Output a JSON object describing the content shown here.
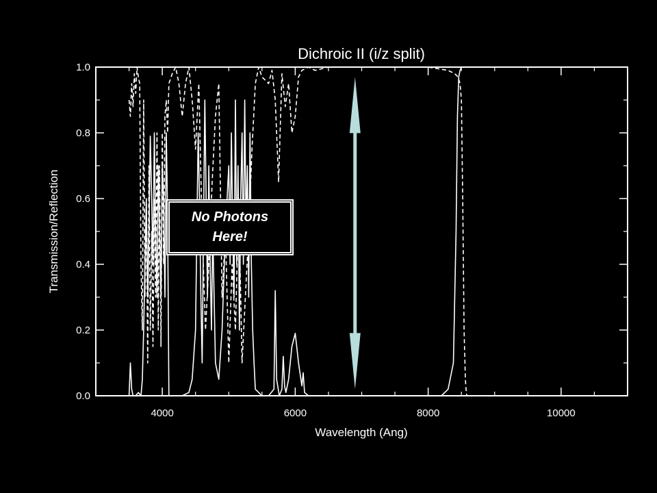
{
  "chart_data": {
    "type": "line",
    "title": "Dichroic II (i/z split)",
    "xlabel": "Wavelength (Ang)",
    "ylabel": "Transmission/Reflection",
    "xlim": [
      3000,
      11000
    ],
    "ylim": [
      0.0,
      1.0
    ],
    "xticks": [
      4000,
      6000,
      8000,
      10000
    ],
    "yticks": [
      "0.0",
      "0.2",
      "0.4",
      "0.6",
      "0.8",
      "1.0"
    ],
    "grid": false,
    "legend": "none",
    "series": [
      {
        "style": "solid",
        "x": [
          3500,
          3520,
          3540,
          3560,
          3580,
          3600,
          3640,
          3680,
          3700,
          3720,
          3740,
          3760,
          3780,
          3800,
          3820,
          3840,
          3860,
          3880,
          3900,
          3920,
          3940,
          3960,
          3980,
          4000,
          4020,
          4040,
          4060,
          4080,
          4100,
          4150,
          4300,
          4400,
          4450,
          4500,
          4520,
          4540,
          4560,
          4580,
          4600,
          4620,
          4640,
          4660,
          4680,
          4700,
          4720,
          4740,
          4760,
          4780,
          4800,
          4850,
          4900,
          4950,
          5000,
          5020,
          5040,
          5060,
          5080,
          5100,
          5120,
          5140,
          5160,
          5180,
          5200,
          5220,
          5240,
          5260,
          5280,
          5300,
          5320,
          5340,
          5360,
          5380,
          5400,
          5450,
          5500,
          5600,
          5680,
          5700,
          5720,
          5760,
          5800,
          5820,
          5840,
          5860,
          5900,
          5950,
          6000,
          6050,
          6100,
          6120,
          6140,
          6200,
          6400,
          7000,
          7800,
          8200,
          8300,
          8380,
          8420,
          8440,
          8460,
          8480,
          8500,
          8550,
          8700,
          9000,
          10000,
          11000
        ],
        "y": [
          0.0,
          0.1,
          0.02,
          0.0,
          0.0,
          0.0,
          0.01,
          0.0,
          0.05,
          0.2,
          0.4,
          0.6,
          0.3,
          0.5,
          0.79,
          0.6,
          0.4,
          0.8,
          0.5,
          0.3,
          0.7,
          0.5,
          0.3,
          0.7,
          0.6,
          0.3,
          0.8,
          0.55,
          0.0,
          0.0,
          0.0,
          0.01,
          0.05,
          0.2,
          0.5,
          0.8,
          0.6,
          0.3,
          0.1,
          0.5,
          0.9,
          0.6,
          0.3,
          0.7,
          0.4,
          0.2,
          0.5,
          0.3,
          0.1,
          0.05,
          0.2,
          0.5,
          0.7,
          0.4,
          0.8,
          0.5,
          0.3,
          0.9,
          0.4,
          0.7,
          0.2,
          0.6,
          0.8,
          0.4,
          0.9,
          0.5,
          0.7,
          0.3,
          0.8,
          0.4,
          0.2,
          0.1,
          0.02,
          0.01,
          0.0,
          0.0,
          0.02,
          0.32,
          0.05,
          0.0,
          0.02,
          0.12,
          0.03,
          0.01,
          0.05,
          0.15,
          0.19,
          0.1,
          0.03,
          0.07,
          0.01,
          0.0,
          0.0,
          0.0,
          0.0,
          0.0,
          0.02,
          0.1,
          0.5,
          0.85,
          0.97,
          0.99,
          1.0,
          1.0,
          1.0,
          1.0,
          1.0,
          1.0
        ]
      },
      {
        "style": "dashed",
        "x": [
          3500,
          3520,
          3540,
          3560,
          3580,
          3600,
          3620,
          3640,
          3660,
          3680,
          3700,
          3720,
          3740,
          3760,
          3780,
          3800,
          3820,
          3840,
          3860,
          3880,
          3900,
          3920,
          3940,
          3960,
          3980,
          4000,
          4020,
          4040,
          4060,
          4080,
          4100,
          4150,
          4200,
          4250,
          4300,
          4350,
          4400,
          4450,
          4500,
          4550,
          4600,
          4650,
          4700,
          4750,
          4800,
          4850,
          4900,
          4950,
          5000,
          5050,
          5100,
          5150,
          5200,
          5250,
          5300,
          5350,
          5400,
          5450,
          5500,
          5600,
          5650,
          5700,
          5750,
          5800,
          5850,
          5900,
          5950,
          6000,
          6050,
          6100,
          6200,
          6300,
          6500,
          7000,
          7500,
          8000,
          8300,
          8400,
          8450,
          8480,
          8500,
          8520,
          8540,
          8560,
          8570,
          8580,
          8600,
          9000,
          10000,
          11000
        ],
        "y": [
          0.9,
          0.85,
          0.95,
          0.88,
          0.98,
          0.92,
          1.0,
          0.97,
          0.95,
          0.4,
          0.2,
          0.9,
          0.3,
          0.6,
          0.1,
          0.7,
          0.2,
          0.5,
          0.15,
          0.6,
          0.3,
          0.8,
          0.2,
          0.7,
          0.15,
          0.8,
          0.4,
          0.85,
          0.9,
          0.8,
          0.95,
          0.98,
          1.0,
          0.95,
          0.85,
          0.95,
          1.0,
          0.9,
          0.75,
          0.95,
          0.5,
          0.2,
          0.4,
          0.65,
          0.85,
          0.95,
          0.3,
          0.5,
          0.1,
          0.4,
          0.2,
          0.6,
          0.1,
          0.3,
          0.5,
          0.75,
          0.95,
          1.0,
          0.97,
          0.95,
          0.99,
          0.9,
          0.65,
          0.98,
          0.88,
          0.95,
          0.8,
          0.85,
          0.97,
          0.99,
          1.0,
          0.99,
          1.0,
          1.0,
          1.0,
          1.0,
          0.99,
          0.98,
          0.97,
          0.95,
          0.9,
          0.6,
          0.2,
          0.05,
          0.02,
          0.0,
          0.0,
          0.0,
          0.0,
          0.0
        ]
      }
    ],
    "annotations": {
      "box_text": "No Photons Here!",
      "arrow": {
        "x": 6900,
        "y_from": 0.02,
        "y_to": 0.97,
        "color": "#b7dcdc"
      }
    }
  }
}
